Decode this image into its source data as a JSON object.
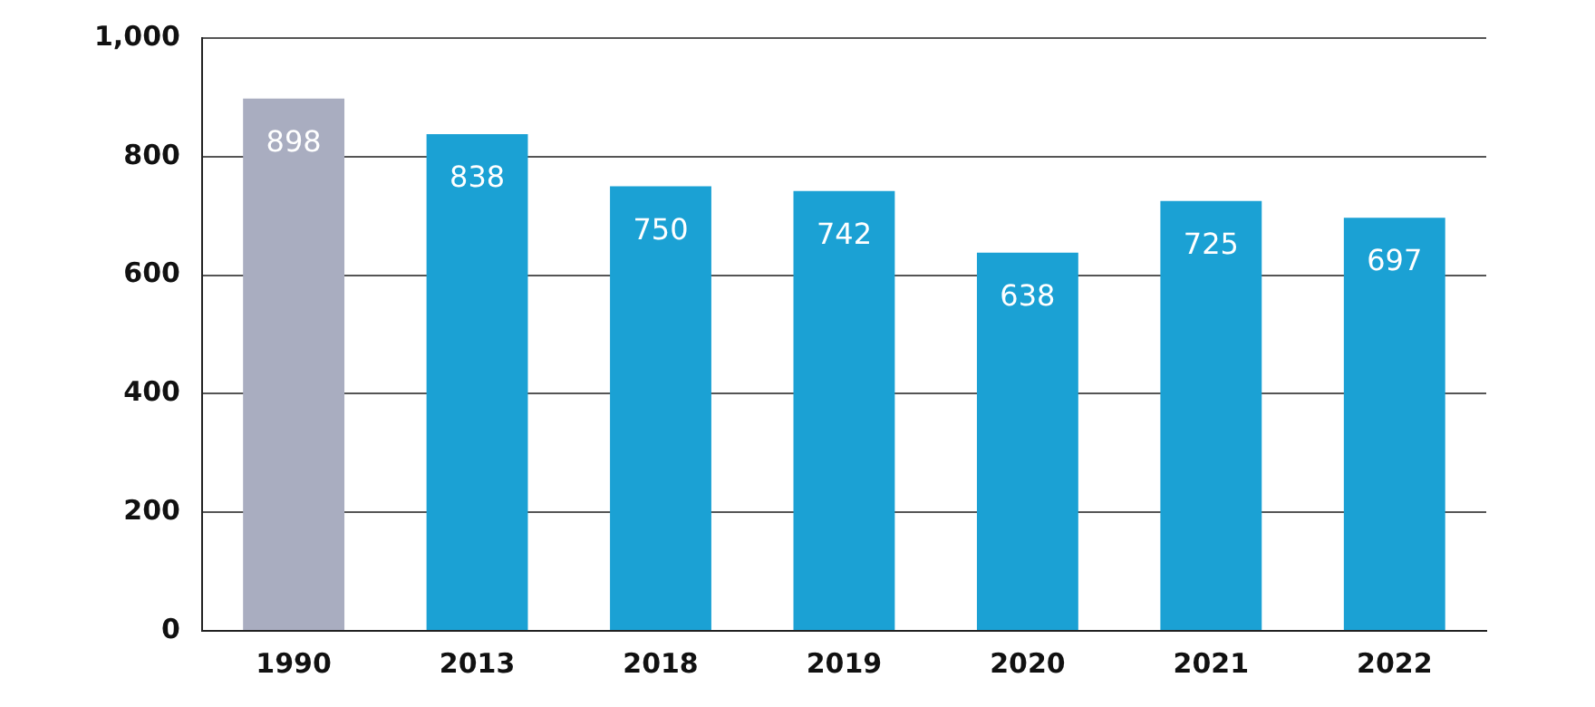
{
  "chart_data": {
    "type": "bar",
    "categories": [
      "1990",
      "2013",
      "2018",
      "2019",
      "2020",
      "2021",
      "2022"
    ],
    "values": [
      898,
      838,
      750,
      742,
      638,
      725,
      697
    ],
    "colors": [
      "#a9adc0",
      "#1ba1d4",
      "#1ba1d4",
      "#1ba1d4",
      "#1ba1d4",
      "#1ba1d4",
      "#1ba1d4"
    ],
    "ylim": [
      0,
      1000
    ],
    "yticks": [
      0,
      200,
      400,
      600,
      800,
      {
        "value": 1000,
        "label": "1,000"
      }
    ],
    "grid": "y",
    "data_labels": true
  }
}
